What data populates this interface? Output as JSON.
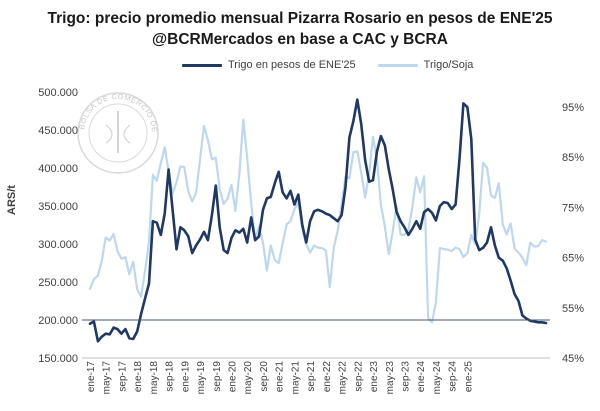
{
  "chart_data": {
    "type": "line",
    "title_line1": "Trigo: precio promedio mensual Pizarra Rosario en pesos de ENE'25",
    "title_line2": "@BCRMercados en base a CAC y BCRA",
    "ylabel": "ARS/t",
    "ylim": [
      150000,
      500000
    ],
    "y2lim": [
      0.45,
      0.98
    ],
    "y_ticks": [
      "150.000",
      "200.000",
      "250.000",
      "300.000",
      "350.000",
      "400.000",
      "450.000",
      "500.000"
    ],
    "y2_ticks": [
      "45%",
      "55%",
      "65%",
      "75%",
      "85%",
      "95%"
    ],
    "x_ticks": [
      "ene-17",
      "may-17",
      "sep-17",
      "ene-18",
      "may-18",
      "sep-18",
      "ene-19",
      "may-19",
      "sep-19",
      "ene-20",
      "may-20",
      "sep-20",
      "ene-21",
      "may-21",
      "sep-21",
      "ene-22",
      "may-22",
      "sep-22",
      "ene-23",
      "may-23",
      "sep-23",
      "ene-24",
      "may-24",
      "sep-24",
      "ene-25"
    ],
    "reference_line": 200000,
    "watermark": "BOLSA DE COMERCIO DE ROSARIO",
    "legend_position": "top",
    "series": [
      {
        "name": "Trigo en pesos de ENE'25",
        "axis": "left",
        "color": "#1f3864",
        "values": [
          195000,
          198000,
          172000,
          178000,
          182000,
          181000,
          190000,
          188000,
          182000,
          188000,
          176000,
          175000,
          185000,
          208000,
          228000,
          248000,
          330000,
          328000,
          312000,
          340000,
          398000,
          345000,
          293000,
          322000,
          318000,
          310000,
          288000,
          298000,
          306000,
          316000,
          305000,
          338000,
          377000,
          322000,
          292000,
          288000,
          308000,
          318000,
          315000,
          320000,
          302000,
          335000,
          305000,
          310000,
          345000,
          360000,
          362000,
          380000,
          395000,
          368000,
          360000,
          370000,
          352000,
          365000,
          325000,
          302000,
          330000,
          343000,
          345000,
          343000,
          340000,
          338000,
          334000,
          330000,
          338000,
          375000,
          440000,
          462000,
          490000,
          458000,
          410000,
          382000,
          384000,
          422000,
          442000,
          430000,
          398000,
          372000,
          342000,
          330000,
          322000,
          312000,
          320000,
          330000,
          320000,
          342000,
          346000,
          341000,
          331000,
          350000,
          355000,
          354000,
          346000,
          352000,
          412000,
          485000,
          480000,
          438000,
          306000,
          292000,
          295000,
          302000,
          322000,
          298000,
          282000,
          278000,
          268000,
          252000,
          234000,
          225000,
          206000,
          202000,
          199000,
          198000,
          197000,
          197000,
          196000
        ]
      },
      {
        "name": "Trigo/Soja",
        "axis": "right",
        "color": "#bdd7ee",
        "values": [
          0.588,
          0.607,
          0.614,
          0.644,
          0.69,
          0.684,
          0.697,
          0.663,
          0.648,
          0.651,
          0.617,
          0.642,
          0.587,
          0.572,
          0.624,
          0.68,
          0.815,
          0.803,
          0.838,
          0.87,
          0.822,
          0.778,
          0.8,
          0.832,
          0.83,
          0.782,
          0.762,
          0.779,
          0.847,
          0.912,
          0.884,
          0.846,
          0.849,
          0.786,
          0.757,
          0.768,
          0.795,
          0.743,
          0.818,
          0.925,
          0.848,
          0.758,
          0.686,
          0.712,
          0.68,
          0.624,
          0.674,
          0.645,
          0.639,
          0.678,
          0.716,
          0.723,
          0.746,
          0.76,
          0.708,
          0.676,
          0.66,
          0.674,
          0.67,
          0.669,
          0.664,
          0.591,
          0.669,
          0.704,
          0.755,
          0.812,
          0.808,
          0.86,
          0.862,
          0.82,
          0.77,
          0.817,
          0.891,
          0.845,
          0.755,
          0.713,
          0.657,
          0.702,
          0.752,
          0.696,
          0.695,
          0.705,
          0.75,
          0.81,
          0.78,
          0.812,
          0.53,
          0.521,
          0.561,
          0.669,
          0.667,
          0.666,
          0.663,
          0.67,
          0.667,
          0.651,
          0.659,
          0.695,
          0.677,
          0.737,
          0.839,
          0.829,
          0.774,
          0.769,
          0.798,
          0.716,
          0.696,
          0.718,
          0.668,
          0.66,
          0.65,
          0.635,
          0.68,
          0.672,
          0.673,
          0.685,
          0.682
        ]
      }
    ]
  }
}
